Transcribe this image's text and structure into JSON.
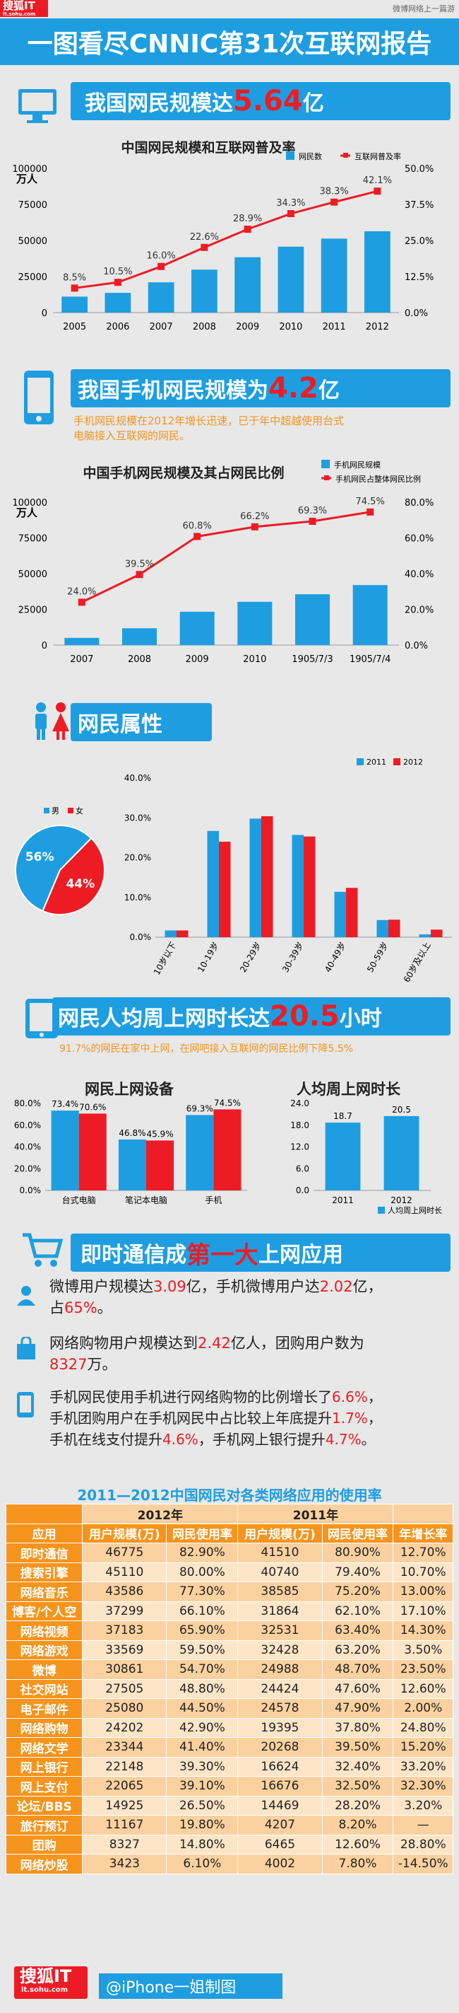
{
  "header": {
    "logo_text": "搜狐IT",
    "logo_sub": "it.sohu.com",
    "watermark": "微博网络上一篇游",
    "title": "一图看尽CNNIC第31次互联网报告"
  },
  "section1": {
    "headline_prefix": "我国网民规模达",
    "headline_number": "5.64",
    "headline_suffix": "亿"
  },
  "section2": {
    "headline_prefix": "我国手机网民规模为",
    "headline_number": "4.2",
    "headline_suffix": "亿",
    "note_line1": "手机网民规模在2012年增长迅速，已于年中超越使用台式",
    "note_line2": "电脑接入互联网的网民。"
  },
  "section3": {
    "headline": "网民属性"
  },
  "section4": {
    "headline_prefix": "网民人均周上网时长达",
    "headline_number": "20.5",
    "headline_suffix": "小时",
    "note": "91.7%的网民在家中上网，在网吧接入互联网的网民比例下降5.5%"
  },
  "section5": {
    "headline_prefix": "即时通信成",
    "headline_highlight": "第一大",
    "headline_suffix": "上网应用",
    "stats": [
      {
        "parts": [
          "微博用户规模达",
          "3.09",
          "亿，手机微博用户达",
          "2.02",
          "亿，",
          "占",
          "65%",
          "。"
        ]
      },
      {
        "parts": [
          "网络购物用户规模达到",
          "2.42",
          "亿人，团购用户数为",
          "8327",
          "万。"
        ]
      },
      {
        "parts": [
          "手机网民使用手机进行网络购物的比例增长了",
          "6.6%",
          "，",
          "手机团购用户在手机网民中占比较上年底提升",
          "1.7%",
          "，",
          "手机在线支付提升",
          "4.6%",
          "，手机网上银行提升",
          "4.7%",
          "。"
        ]
      }
    ]
  },
  "footer": {
    "logo_text": "搜狐IT",
    "logo_sub": "it.sohu.com",
    "credit": "@iPhone一姐制图"
  },
  "chart_data": [
    {
      "type": "bar+line",
      "title": "中国网民规模和互联网普及率",
      "ylabel": "万人",
      "categories": [
        "2005",
        "2006",
        "2007",
        "2008",
        "2009",
        "2010",
        "2011",
        "2012"
      ],
      "series": [
        {
          "name": "网民数",
          "type": "bar",
          "values": [
            11100,
            13700,
            21000,
            29800,
            38400,
            45730,
            51310,
            56400
          ],
          "color": "#1e9ee0"
        },
        {
          "name": "互联网普及率",
          "type": "line",
          "axis": "right",
          "values": [
            8.5,
            10.5,
            16.0,
            22.6,
            28.9,
            34.3,
            38.3,
            42.1
          ],
          "labels": [
            "8.5%",
            "10.5%",
            "16.0%",
            "22.6%",
            "28.9%",
            "34.3%",
            "38.3%",
            "42.1%"
          ],
          "color": "#ed1c24"
        }
      ],
      "yticks": [
        "0",
        "25000",
        "50000",
        "75000",
        "100000"
      ],
      "y2ticks": [
        "0.0%",
        "12.5%",
        "25.0%",
        "37.5%",
        "50.0%"
      ],
      "ylim": [
        0,
        100000
      ],
      "y2lim": [
        0,
        50
      ]
    },
    {
      "type": "bar+line",
      "title": "中国手机网民规模及其占网民比例",
      "ylabel": "万人",
      "categories": [
        "2007",
        "2008",
        "2009",
        "2010",
        "1905/7/3",
        "1905/7/4"
      ],
      "series": [
        {
          "name": "手机网民规模",
          "type": "bar",
          "values": [
            5040,
            11760,
            23344,
            30274,
            35558,
            41997
          ],
          "color": "#1e9ee0"
        },
        {
          "name": "手机网民占整体网民比例",
          "type": "line",
          "axis": "right",
          "values": [
            24.0,
            39.5,
            60.8,
            66.2,
            69.3,
            74.5
          ],
          "labels": [
            "24.0%",
            "39.5%",
            "60.8%",
            "66.2%",
            "69.3%",
            "74.5%"
          ],
          "color": "#ed1c24"
        }
      ],
      "yticks": [
        "0",
        "25000",
        "50000",
        "75000",
        "100000"
      ],
      "y2ticks": [
        "0.0%",
        "20.0%",
        "40.0%",
        "60.0%",
        "80.0%"
      ],
      "ylim": [
        0,
        100000
      ],
      "y2lim": [
        0,
        80
      ]
    },
    {
      "type": "pie",
      "legend": [
        "男",
        "女"
      ],
      "values": [
        56,
        44
      ],
      "labels": [
        "56%",
        "44%"
      ],
      "colors": [
        "#1e9ee0",
        "#ed1c24"
      ]
    },
    {
      "type": "bar",
      "categories": [
        "10岁以下",
        "10-19岁",
        "20-29岁",
        "30-39岁",
        "40-49岁",
        "50-59岁",
        "60岁及以上"
      ],
      "series": [
        {
          "name": "2011",
          "values": [
            1.7,
            26.7,
            29.8,
            25.7,
            11.4,
            4.3,
            0.7
          ],
          "color": "#1e9ee0"
        },
        {
          "name": "2012",
          "values": [
            1.7,
            24.0,
            30.4,
            25.3,
            12.4,
            4.4,
            1.9
          ],
          "color": "#ed1c24"
        }
      ],
      "yticks": [
        "0.0%",
        "10.0%",
        "20.0%",
        "30.0%",
        "40.0%"
      ],
      "ylim": [
        0,
        40
      ]
    },
    {
      "type": "bar",
      "title": "网民上网设备",
      "categories": [
        "台式电脑",
        "笔记本电脑",
        "手机"
      ],
      "series": [
        {
          "name": "2011",
          "values": [
            73.4,
            46.8,
            69.3
          ],
          "labels": [
            "73.4%",
            "46.8%",
            "69.3%"
          ],
          "color": "#1e9ee0"
        },
        {
          "name": "2012",
          "values": [
            70.6,
            45.9,
            74.5
          ],
          "labels": [
            "70.6%",
            "45.9%",
            "74.5%"
          ],
          "color": "#ed1c24"
        }
      ],
      "yticks": [
        "0.0%",
        "20.0%",
        "40.0%",
        "60.0%",
        "80.0%"
      ],
      "ylim": [
        0,
        80
      ]
    },
    {
      "type": "bar",
      "title": "人均周上网时长",
      "categories": [
        "2011",
        "2012"
      ],
      "series": [
        {
          "name": "人均周上网时长",
          "values": [
            18.7,
            20.5
          ],
          "labels": [
            "18.7",
            "20.5"
          ],
          "color": "#1e9ee0"
        }
      ],
      "yticks": [
        "0.0",
        "6.0",
        "12.0",
        "18.0",
        "24.0"
      ],
      "ylim": [
        0,
        24
      ]
    },
    {
      "type": "table",
      "title": "2011—2012中国网民对各类网络应用的使用率",
      "group_headers": [
        "2012年",
        "2011年"
      ],
      "columns": [
        "应用",
        "用户规模(万)",
        "网民使用率",
        "用户规模(万)",
        "网民使用率",
        "年增长率"
      ],
      "rows": [
        [
          "即时通信",
          "46775",
          "82.90%",
          "41510",
          "80.90%",
          "12.70%"
        ],
        [
          "搜索引擎",
          "45110",
          "80.00%",
          "40740",
          "79.40%",
          "10.70%"
        ],
        [
          "网络音乐",
          "43586",
          "77.30%",
          "38585",
          "75.20%",
          "13.00%"
        ],
        [
          "博客/个人空",
          "37299",
          "66.10%",
          "31864",
          "62.10%",
          "17.10%"
        ],
        [
          "网络视频",
          "37183",
          "65.90%",
          "32531",
          "63.40%",
          "14.30%"
        ],
        [
          "网络游戏",
          "33569",
          "59.50%",
          "32428",
          "63.20%",
          "3.50%"
        ],
        [
          "微博",
          "30861",
          "54.70%",
          "24988",
          "48.70%",
          "23.50%"
        ],
        [
          "社交网站",
          "27505",
          "48.80%",
          "24424",
          "47.60%",
          "12.60%"
        ],
        [
          "电子邮件",
          "25080",
          "44.50%",
          "24578",
          "47.90%",
          "2.00%"
        ],
        [
          "网络购物",
          "24202",
          "42.90%",
          "19395",
          "37.80%",
          "24.80%"
        ],
        [
          "网络文学",
          "23344",
          "41.40%",
          "20268",
          "39.50%",
          "15.20%"
        ],
        [
          "网上银行",
          "22148",
          "39.30%",
          "16624",
          "32.40%",
          "33.20%"
        ],
        [
          "网上支付",
          "22065",
          "39.10%",
          "16676",
          "32.50%",
          "32.30%"
        ],
        [
          "论坛/BBS",
          "14925",
          "26.50%",
          "14469",
          "28.20%",
          "3.20%"
        ],
        [
          "旅行预订",
          "11167",
          "19.80%",
          "4207",
          "8.20%",
          "—"
        ],
        [
          "团购",
          "8327",
          "14.80%",
          "6465",
          "12.60%",
          "28.80%"
        ],
        [
          "网络炒股",
          "3423",
          "6.10%",
          "4002",
          "7.80%",
          "-14.50%"
        ]
      ]
    }
  ]
}
